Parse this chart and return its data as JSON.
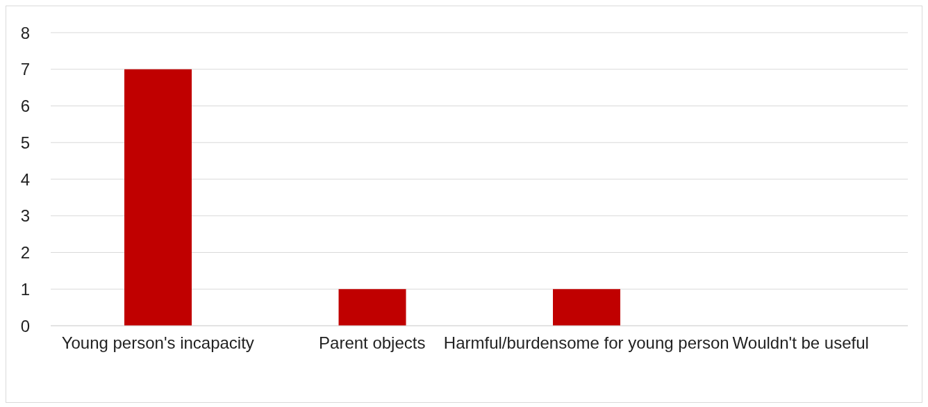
{
  "chart_data": {
    "type": "bar",
    "categories": [
      "Young person's incapacity",
      "Parent objects",
      "Harmful/burdensome for young person",
      "Wouldn't be useful"
    ],
    "values": [
      7,
      1,
      1,
      0
    ],
    "color": "#c00000",
    "ylim": [
      0,
      8
    ],
    "yticks": [
      0,
      1,
      2,
      3,
      4,
      5,
      6,
      7,
      8
    ],
    "grid": "y",
    "legend": false
  }
}
